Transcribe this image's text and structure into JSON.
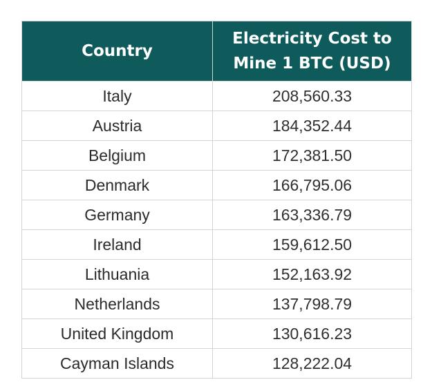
{
  "chart_data": {
    "type": "table",
    "columns": [
      "Country",
      "Electricity Cost to Mine 1 BTC (USD)"
    ],
    "header_lines": [
      [
        "Country"
      ],
      [
        "Electricity Cost to",
        "Mine 1 BTC (USD)"
      ]
    ],
    "rows": [
      {
        "country": "Italy",
        "cost": "208,560.33"
      },
      {
        "country": "Austria",
        "cost": "184,352.44"
      },
      {
        "country": "Belgium",
        "cost": "172,381.50"
      },
      {
        "country": "Denmark",
        "cost": "166,795.06"
      },
      {
        "country": "Germany",
        "cost": "163,336.79"
      },
      {
        "country": "Ireland",
        "cost": "159,612.50"
      },
      {
        "country": "Lithuania",
        "cost": "152,163.92"
      },
      {
        "country": "Netherlands",
        "cost": "137,798.79"
      },
      {
        "country": "United Kingdom",
        "cost": "130,616.23"
      },
      {
        "country": "Cayman Islands",
        "cost": "128,222.04"
      }
    ]
  },
  "colors": {
    "header_bg": "#0f5b5b",
    "header_text": "#ffffff",
    "border": "#d3d3d3"
  }
}
